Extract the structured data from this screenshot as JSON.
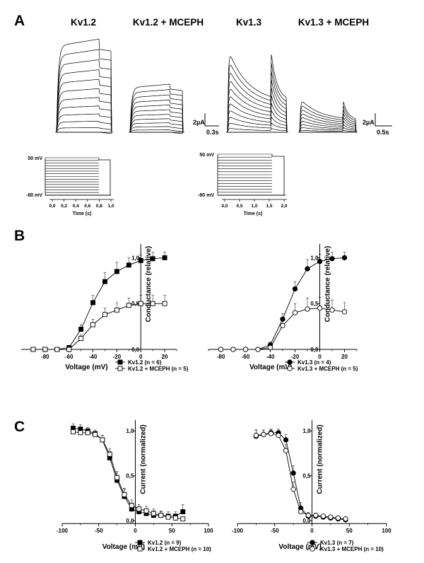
{
  "panels": {
    "a": "A",
    "b": "B",
    "c": "C"
  },
  "traces": {
    "titles": [
      "Kv1.2",
      "Kv1.2 + MCEPH",
      "Kv1.3",
      "Kv1.3 + MCEPH"
    ],
    "scale1": {
      "y": "2µA",
      "x": "0.3s"
    },
    "scale2": {
      "y": "2µA",
      "x": "0.5s"
    }
  },
  "protocols": [
    {
      "top_label": "50 mV",
      "bottom_label": "-80 mV",
      "xticks": [
        "0,0",
        "0,2",
        "0,4",
        "0,6",
        "0,8",
        "1,0"
      ],
      "xlabel": "Time (s)"
    },
    {
      "top_label": "50 mV",
      "bottom_label": "-80 mV",
      "xticks": [
        "0,0",
        "0,5",
        "1,0",
        "1,5",
        "2,0"
      ],
      "xlabel": "Time (s)"
    }
  ],
  "chart_data": [
    {
      "type": "line",
      "panel": "B",
      "xlabel": "Voltage (mV)",
      "ylabel": "Conductance (relative)",
      "xlim": [
        -100,
        30
      ],
      "ylim": [
        0,
        1.15
      ],
      "xticks": [
        -80,
        -60,
        -40,
        -20,
        0,
        20
      ],
      "xtick_labels": [
        "-80",
        "-60",
        "-40",
        "-20",
        "0",
        "20"
      ],
      "yticks": [
        0,
        0.5,
        1.0
      ],
      "ytick_labels": [
        "0,0",
        "0,5",
        "1,0"
      ],
      "legend_position": "bottom-right",
      "series": [
        {
          "name": "Kv1.2 (n = 6)",
          "marker": "filled-square",
          "x": [
            -100,
            -90,
            -80,
            -70,
            -60,
            -50,
            -40,
            -30,
            -20,
            -10,
            0,
            10,
            20
          ],
          "y": [
            0,
            0,
            0,
            0,
            0.02,
            0.22,
            0.51,
            0.74,
            0.85,
            0.92,
            0.97,
            0.99,
            1.0
          ],
          "err": [
            0,
            0,
            0,
            0,
            0.02,
            0.05,
            0.08,
            0.1,
            0.1,
            0.08,
            0.06,
            0.07,
            0.06
          ]
        },
        {
          "name": "Kv1.2 + MCEPH (n = 5)",
          "marker": "open-square",
          "x": [
            -100,
            -90,
            -80,
            -70,
            -60,
            -50,
            -40,
            -30,
            -20,
            -10,
            0,
            10,
            20
          ],
          "y": [
            0,
            0,
            0,
            0,
            0.0,
            0.12,
            0.27,
            0.38,
            0.43,
            0.48,
            0.5,
            0.5,
            0.5
          ],
          "err": [
            0,
            0,
            0,
            0,
            0.02,
            0.04,
            0.06,
            0.07,
            0.08,
            0.08,
            0.09,
            0.09,
            0.09
          ]
        }
      ]
    },
    {
      "type": "line",
      "panel": "B",
      "xlabel": "Voltage (mV)",
      "ylabel": "Conductance (relative)",
      "xlim": [
        -90,
        30
      ],
      "ylim": [
        0,
        1.15
      ],
      "xticks": [
        -80,
        -60,
        -40,
        -20,
        0,
        20
      ],
      "xtick_labels": [
        "-80",
        "-60",
        "-40",
        "-20",
        "0",
        "20"
      ],
      "yticks": [
        0,
        0.5,
        1.0
      ],
      "ytick_labels": [
        "0,0",
        "0,5",
        "1,0"
      ],
      "legend_position": "bottom-right",
      "series": [
        {
          "name": "Kv1.3 (n = 4)",
          "marker": "filled-circle",
          "x": [
            -80,
            -70,
            -60,
            -50,
            -40,
            -30,
            -20,
            -10,
            0,
            10,
            20
          ],
          "y": [
            0,
            0,
            0,
            0,
            0.05,
            0.33,
            0.66,
            0.88,
            0.96,
            0.99,
            1.0
          ],
          "err": [
            0,
            0,
            0,
            0,
            0.03,
            0.06,
            0.08,
            0.1,
            0.08,
            0.07,
            0.06
          ]
        },
        {
          "name": "Kv1.3 + MCEPH (n = 5)",
          "marker": "open-circle",
          "x": [
            -80,
            -70,
            -60,
            -50,
            -40,
            -30,
            -20,
            -10,
            0,
            10,
            20
          ],
          "y": [
            0,
            0,
            0,
            0,
            0.02,
            0.26,
            0.4,
            0.44,
            0.45,
            0.43,
            0.41
          ],
          "err": [
            0,
            0,
            0,
            0,
            0.03,
            0.06,
            0.1,
            0.12,
            0.12,
            0.11,
            0.1
          ]
        }
      ]
    },
    {
      "type": "line",
      "panel": "C",
      "xlabel": "Voltage  (mV)",
      "ylabel": "Current (normalized)",
      "xlim": [
        -100,
        100
      ],
      "ylim": [
        -0.03,
        1.12
      ],
      "xticks": [
        -100,
        -50,
        0,
        50,
        100
      ],
      "xtick_labels": [
        "-100",
        "-50",
        "0",
        "50",
        "100"
      ],
      "yticks": [
        0,
        0.5,
        1.0
      ],
      "ytick_labels": [
        "0,0",
        "0,5",
        "1,0"
      ],
      "legend_position": "bottom-right",
      "series": [
        {
          "name": "Kv1.2 (n = 9)",
          "marker": "filled-square",
          "x": [
            -85,
            -75,
            -65,
            -55,
            -45,
            -35,
            -25,
            -15,
            -5,
            5,
            15,
            25,
            35,
            45,
            55,
            65
          ],
          "y": [
            1.03,
            1.02,
            1.0,
            0.97,
            0.9,
            0.7,
            0.45,
            0.27,
            0.13,
            0.1,
            0.08,
            0.06,
            0.06,
            0.05,
            0.05,
            0.1
          ],
          "err": [
            0.05,
            0.05,
            0.04,
            0.04,
            0.05,
            0.07,
            0.08,
            0.08,
            0.06,
            0.05,
            0.05,
            0.05,
            0.05,
            0.05,
            0.05,
            0.08
          ]
        },
        {
          "name": "Kv1.2 + MCEPH (n = 10)",
          "marker": "open-square",
          "x": [
            -85,
            -75,
            -65,
            -55,
            -45,
            -35,
            -25,
            -15,
            -5,
            5,
            15,
            25,
            35,
            45,
            55,
            65
          ],
          "y": [
            0.99,
            0.98,
            0.98,
            0.96,
            0.9,
            0.74,
            0.48,
            0.29,
            0.17,
            0.13,
            0.11,
            0.08,
            0.06,
            0.04,
            0.03,
            0.02
          ],
          "err": [
            0.03,
            0.03,
            0.03,
            0.03,
            0.05,
            0.06,
            0.07,
            0.07,
            0.06,
            0.05,
            0.05,
            0.05,
            0.04,
            0.03,
            0.03,
            0.02
          ]
        }
      ]
    },
    {
      "type": "line",
      "panel": "C",
      "xlabel": "Voltage  (mV)",
      "ylabel": "Current (normalized)",
      "xlim": [
        -100,
        100
      ],
      "ylim": [
        -0.03,
        1.12
      ],
      "xticks": [
        -100,
        -50,
        0,
        50,
        100
      ],
      "xtick_labels": [
        "-100",
        "-50",
        "0",
        "50",
        "100"
      ],
      "yticks": [
        0,
        0.5,
        1.0
      ],
      "ytick_labels": [
        "0,0",
        "0,5",
        "1,0"
      ],
      "legend_position": "bottom-right",
      "series": [
        {
          "name": "Kv1.3 (n = 7)",
          "marker": "filled-circle",
          "x": [
            -75,
            -65,
            -55,
            -45,
            -35,
            -25,
            -15,
            -5,
            5,
            15,
            25,
            35,
            45
          ],
          "y": [
            0.94,
            0.96,
            0.98,
            0.98,
            0.9,
            0.53,
            0.14,
            0.05,
            0.05,
            0.04,
            0.03,
            0.02,
            0.01
          ],
          "err": [
            0.07,
            0.05,
            0.04,
            0.04,
            0.06,
            0.08,
            0.06,
            0.03,
            0.02,
            0.02,
            0.02,
            0.02,
            0.01
          ]
        },
        {
          "name": "Kv1.3 + MCEPH (n = 10)",
          "marker": "open-circle",
          "x": [
            -75,
            -65,
            -55,
            -45,
            -35,
            -25,
            -15,
            -5,
            5,
            15,
            25,
            35,
            45
          ],
          "y": [
            0.95,
            0.96,
            0.97,
            0.95,
            0.78,
            0.35,
            0.1,
            0.06,
            0.06,
            0.05,
            0.04,
            0.03,
            0.02
          ],
          "err": [
            0.06,
            0.05,
            0.04,
            0.05,
            0.07,
            0.08,
            0.05,
            0.03,
            0.02,
            0.02,
            0.02,
            0.02,
            0.01
          ]
        }
      ]
    }
  ]
}
